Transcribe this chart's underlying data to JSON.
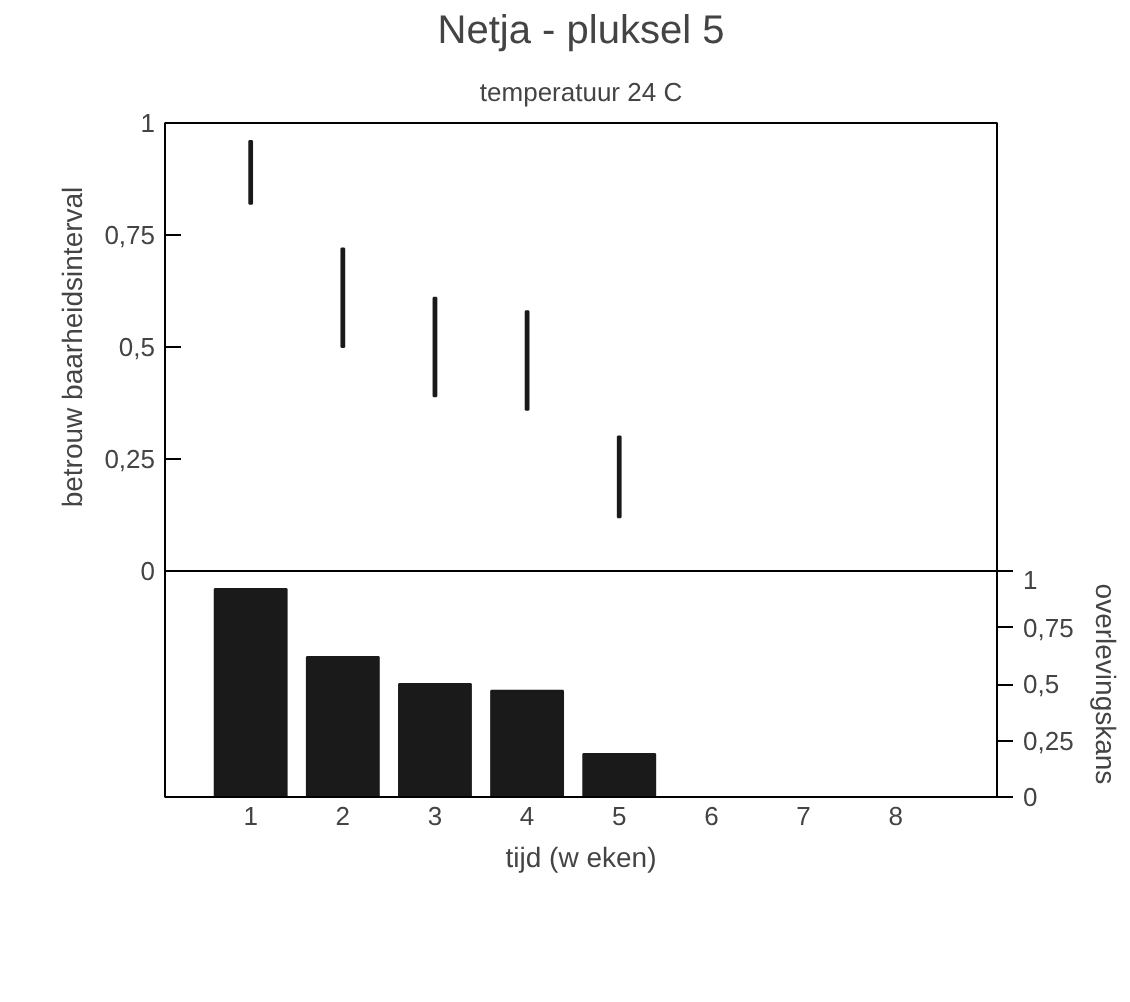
{
  "chart_data": [
    {
      "type": "bar",
      "title": "Netja - pluksel 5",
      "subtitle": "temperatuur 24 C",
      "categories": [
        "1",
        "2",
        "3",
        "4",
        "5",
        "6",
        "7",
        "8"
      ],
      "ylabel": "betrouw baarheidsinterval",
      "ylim": [
        0,
        1
      ],
      "yticks": [
        0,
        {
          "value": 0.25,
          "label": "0,25"
        },
        {
          "value": 0.5,
          "label": "0,5"
        },
        {
          "value": 0.75,
          "label": "0,75"
        },
        1
      ],
      "tick_labels": "y",
      "grid": false,
      "series": [
        {
          "color": "#1a1a1a",
          "base": [
            0.82,
            0.5,
            0.39,
            0.36,
            0.12,
            null,
            null,
            null
          ],
          "values": [
            0.14,
            0.22,
            0.22,
            0.22,
            0.18,
            null,
            null,
            null
          ]
        }
      ]
    },
    {
      "type": "bar",
      "categories": [
        "1",
        "2",
        "3",
        "4",
        "5",
        "6",
        "7",
        "8"
      ],
      "xlabel": "tijd (w eken)",
      "y2label": "overlevingskans",
      "y2lim": [
        0,
        1
      ],
      "y2ticks": [
        0,
        {
          "value": 0.25,
          "label": "0,25"
        },
        {
          "value": 0.5,
          "label": "0,5"
        },
        {
          "value": 0.75,
          "label": "0,75"
        },
        1
      ],
      "grid": false,
      "series": [
        {
          "axis": "y2",
          "color": "#1a1a1a",
          "values": [
            0.92,
            0.62,
            0.5,
            0.47,
            0.19,
            null,
            null,
            null
          ]
        }
      ]
    }
  ]
}
